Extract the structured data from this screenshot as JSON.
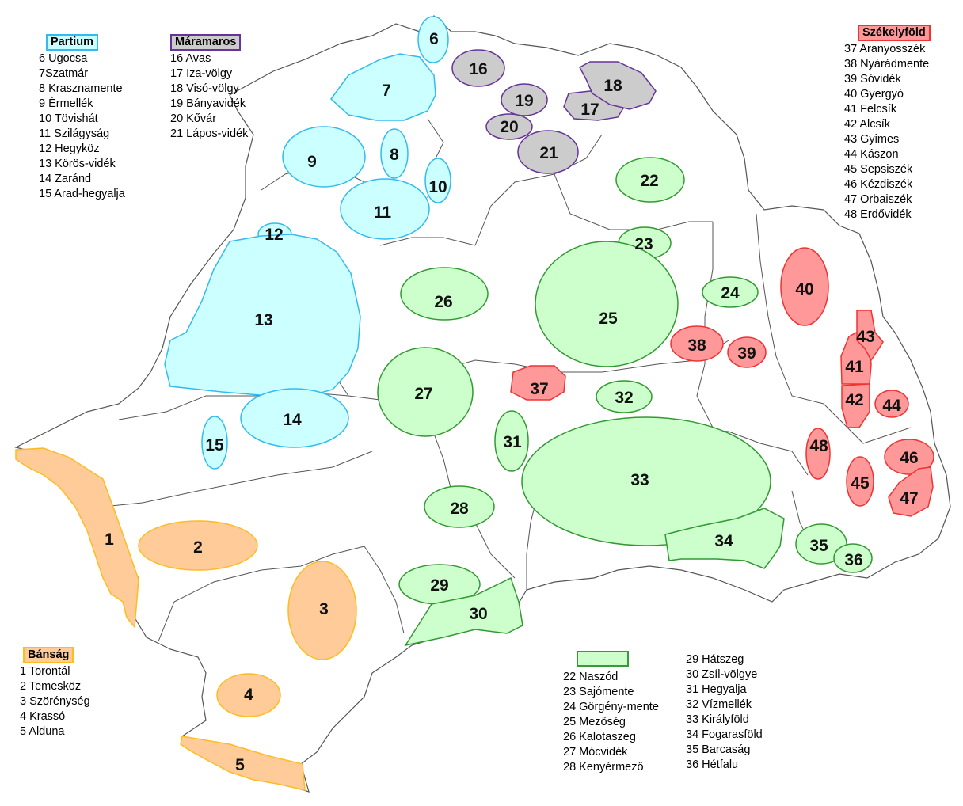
{
  "map": {
    "colors": {
      "partium_fill": "#ccffff",
      "partium_stroke": "#33bbee",
      "maramaros_fill": "#cccccc",
      "maramaros_stroke": "#663399",
      "bansag_fill": "#ffcc99",
      "bansag_stroke": "#ffbb22",
      "green_fill": "#ccffcc",
      "green_stroke": "#339933",
      "szekely_fill": "#ff9999",
      "szekely_stroke": "#ee3333",
      "border": "#555555"
    },
    "regions": [
      {
        "n": "1",
        "group": "bansag"
      },
      {
        "n": "2",
        "group": "bansag"
      },
      {
        "n": "3",
        "group": "bansag"
      },
      {
        "n": "4",
        "group": "bansag"
      },
      {
        "n": "5",
        "group": "bansag"
      },
      {
        "n": "6",
        "group": "partium"
      },
      {
        "n": "7",
        "group": "partium"
      },
      {
        "n": "8",
        "group": "partium"
      },
      {
        "n": "9",
        "group": "partium"
      },
      {
        "n": "10",
        "group": "partium"
      },
      {
        "n": "11",
        "group": "partium"
      },
      {
        "n": "12",
        "group": "partium"
      },
      {
        "n": "13",
        "group": "partium"
      },
      {
        "n": "14",
        "group": "partium"
      },
      {
        "n": "15",
        "group": "partium"
      },
      {
        "n": "16",
        "group": "maramaros"
      },
      {
        "n": "17",
        "group": "maramaros"
      },
      {
        "n": "18",
        "group": "maramaros"
      },
      {
        "n": "19",
        "group": "maramaros"
      },
      {
        "n": "20",
        "group": "maramaros"
      },
      {
        "n": "21",
        "group": "maramaros"
      },
      {
        "n": "22",
        "group": "green"
      },
      {
        "n": "23",
        "group": "green"
      },
      {
        "n": "24",
        "group": "green"
      },
      {
        "n": "25",
        "group": "green"
      },
      {
        "n": "26",
        "group": "green"
      },
      {
        "n": "27",
        "group": "green"
      },
      {
        "n": "28",
        "group": "green"
      },
      {
        "n": "29",
        "group": "green"
      },
      {
        "n": "30",
        "group": "green"
      },
      {
        "n": "31",
        "group": "green"
      },
      {
        "n": "32",
        "group": "green"
      },
      {
        "n": "33",
        "group": "green"
      },
      {
        "n": "34",
        "group": "green"
      },
      {
        "n": "35",
        "group": "green"
      },
      {
        "n": "36",
        "group": "green"
      },
      {
        "n": "37",
        "group": "szekely"
      },
      {
        "n": "38",
        "group": "szekely"
      },
      {
        "n": "39",
        "group": "szekely"
      },
      {
        "n": "40",
        "group": "szekely"
      },
      {
        "n": "41",
        "group": "szekely"
      },
      {
        "n": "42",
        "group": "szekely"
      },
      {
        "n": "43",
        "group": "szekely"
      },
      {
        "n": "44",
        "group": "szekely"
      },
      {
        "n": "45",
        "group": "szekely"
      },
      {
        "n": "46",
        "group": "szekely"
      },
      {
        "n": "47",
        "group": "szekely"
      },
      {
        "n": "48",
        "group": "szekely"
      }
    ]
  },
  "legend": {
    "partium": {
      "title": "Partium",
      "items": [
        "6 Ugocsa",
        "7Szatmár",
        "8 Krasznamente",
        "9 Érmellék",
        "10 Tövishát",
        "11 Szilágyság",
        "12 Hegyköz",
        "13 Körös-vidék",
        "14 Zaránd",
        "15 Arad-hegyalja"
      ]
    },
    "maramaros": {
      "title": "Máramaros",
      "items": [
        "16 Avas",
        "17 Iza-völgy",
        "18 Visó-völgy",
        "19 Bányavidék",
        "20 Kővár",
        "21 Lápos-vidék"
      ]
    },
    "szekelyfold": {
      "title": "Székelyföld",
      "items": [
        "37 Aranyosszék",
        "38 Nyárádmente",
        "39 Sóvidék",
        "40 Gyergyó",
        "41 Felcsík",
        "42 Alcsík",
        "43 Gyimes",
        "44 Kászon",
        "45 Sepsiszék",
        "46 Kézdiszék",
        "47 Orbaiszék",
        "48 Erdővidék"
      ]
    },
    "bansag": {
      "title": "Bánság",
      "items": [
        "1 Torontál",
        "2 Temesköz",
        "3 Szörénység",
        "4 Krassó",
        "5 Alduna"
      ]
    },
    "green_col1": {
      "items": [
        "22 Naszód",
        "23 Sajómente",
        "24 Görgény-mente",
        "25 Mezőség",
        "26 Kalotaszeg",
        "27 Mócvidék",
        "28 Kenyérmező"
      ]
    },
    "green_col2": {
      "items": [
        "29 Hátszeg",
        "30 Zsíl-völgye",
        "31 Hegyalja",
        "32 Vízmellék",
        "33 Királyföld",
        "34 Fogarasföld",
        "35 Barcaság",
        "36 Hétfalu"
      ]
    }
  }
}
